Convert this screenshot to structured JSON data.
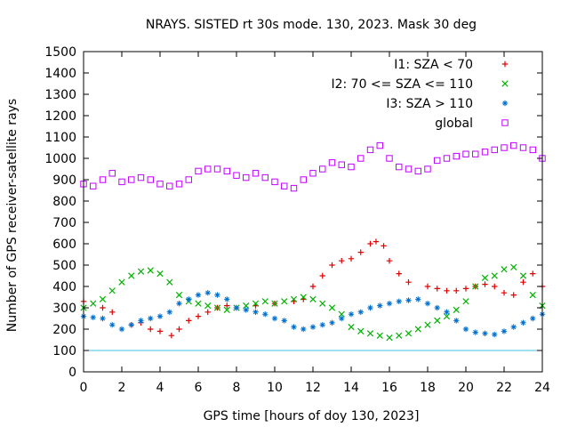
{
  "chart_data": {
    "type": "scatter",
    "title": "NRAYS. SISTED rt 30s mode. 130, 2023. Mask 30 deg",
    "xlabel": "GPS time [hours of doy 130, 2023]",
    "ylabel": "Number of GPS receiver-satellite rays",
    "xlim": [
      0,
      24
    ],
    "ylim": [
      0,
      1500
    ],
    "xticks": [
      0,
      2,
      4,
      6,
      8,
      10,
      12,
      14,
      16,
      18,
      20,
      22,
      24
    ],
    "yticks": [
      0,
      100,
      200,
      300,
      400,
      500,
      600,
      700,
      800,
      900,
      1000,
      1100,
      1200,
      1300,
      1400,
      1500
    ],
    "legend_position": "top-right",
    "reference_line": {
      "y": 100,
      "color": "#40c0e0"
    },
    "series": [
      {
        "name": "I1: SZA < 70",
        "marker": "plus",
        "color": "#e00000",
        "x": [
          0,
          1,
          1.5,
          2.5,
          3,
          3.5,
          4,
          4.6,
          5,
          5.5,
          6,
          6.5,
          7,
          7.5,
          8,
          9,
          10,
          11,
          11.5,
          12,
          12.5,
          13,
          13.5,
          14,
          14.5,
          15,
          15.3,
          15.7,
          16,
          16.5,
          17,
          18,
          18.5,
          19,
          19.5,
          20,
          20.5,
          21,
          21.5,
          22,
          22.5,
          23,
          23.5,
          24
        ],
        "values": [
          330,
          300,
          280,
          220,
          230,
          200,
          190,
          170,
          200,
          240,
          260,
          280,
          300,
          310,
          300,
          310,
          320,
          330,
          340,
          400,
          450,
          500,
          520,
          530,
          560,
          600,
          610,
          590,
          520,
          460,
          420,
          400,
          390,
          380,
          380,
          390,
          400,
          410,
          400,
          370,
          360,
          420,
          460,
          400
        ]
      },
      {
        "name": "I2: 70 <= SZA <= 110",
        "marker": "cross",
        "color": "#00b000",
        "x": [
          0,
          0.5,
          1,
          1.5,
          2,
          2.5,
          3,
          3.5,
          4,
          4.5,
          5,
          5.5,
          6,
          6.5,
          7,
          7.5,
          8,
          8.5,
          9,
          9.5,
          10,
          10.5,
          11,
          11.5,
          12,
          12.5,
          13,
          13.5,
          14,
          14.5,
          15,
          15.5,
          16,
          16.5,
          17,
          17.5,
          18,
          18.5,
          19,
          19.5,
          20,
          20.5,
          21,
          21.5,
          22,
          22.5,
          23,
          23.5,
          24
        ],
        "values": [
          300,
          320,
          340,
          380,
          420,
          450,
          470,
          475,
          460,
          420,
          360,
          330,
          320,
          310,
          300,
          290,
          300,
          310,
          320,
          330,
          320,
          330,
          340,
          350,
          340,
          320,
          300,
          270,
          210,
          190,
          180,
          170,
          160,
          170,
          180,
          200,
          220,
          240,
          260,
          290,
          330,
          400,
          440,
          450,
          480,
          490,
          450,
          360,
          310
        ]
      },
      {
        "name": "I3: SZA > 110",
        "marker": "star",
        "color": "#0070d0",
        "x": [
          0,
          0.5,
          1,
          1.5,
          2,
          2.5,
          3,
          3.5,
          4,
          4.5,
          5,
          5.5,
          6,
          6.5,
          7,
          7.5,
          8,
          8.5,
          9,
          9.5,
          10,
          10.5,
          11,
          11.5,
          12,
          12.5,
          13,
          13.5,
          14,
          14.5,
          15,
          15.5,
          16,
          16.5,
          17,
          17.5,
          18,
          18.5,
          19,
          19.5,
          20,
          20.5,
          21,
          21.5,
          22,
          22.5,
          23,
          23.5,
          24
        ],
        "values": [
          260,
          255,
          250,
          220,
          200,
          220,
          240,
          250,
          260,
          280,
          320,
          340,
          360,
          370,
          360,
          340,
          300,
          290,
          280,
          270,
          250,
          240,
          210,
          200,
          210,
          220,
          230,
          250,
          270,
          280,
          300,
          310,
          320,
          330,
          335,
          340,
          320,
          300,
          280,
          240,
          200,
          185,
          180,
          175,
          190,
          210,
          230,
          250,
          270
        ]
      },
      {
        "name": "global",
        "marker": "square",
        "color": "#c000ff",
        "x": [
          0,
          0.5,
          1,
          1.5,
          2,
          2.5,
          3,
          3.5,
          4,
          4.5,
          5,
          5.5,
          6,
          6.5,
          7,
          7.5,
          8,
          8.5,
          9,
          9.5,
          10,
          10.5,
          11,
          11.5,
          12,
          12.5,
          13,
          13.5,
          14,
          14.5,
          15,
          15.5,
          16,
          16.5,
          17,
          17.5,
          18,
          18.5,
          19,
          19.5,
          20,
          20.5,
          21,
          21.5,
          22,
          22.5,
          23,
          23.5,
          24
        ],
        "values": [
          880,
          870,
          900,
          930,
          890,
          900,
          910,
          900,
          880,
          870,
          880,
          900,
          940,
          950,
          950,
          940,
          920,
          910,
          930,
          910,
          890,
          870,
          860,
          900,
          930,
          950,
          980,
          970,
          960,
          1000,
          1040,
          1060,
          1000,
          960,
          950,
          940,
          950,
          990,
          1000,
          1010,
          1020,
          1020,
          1030,
          1040,
          1050,
          1060,
          1050,
          1040,
          1000
        ]
      }
    ]
  }
}
